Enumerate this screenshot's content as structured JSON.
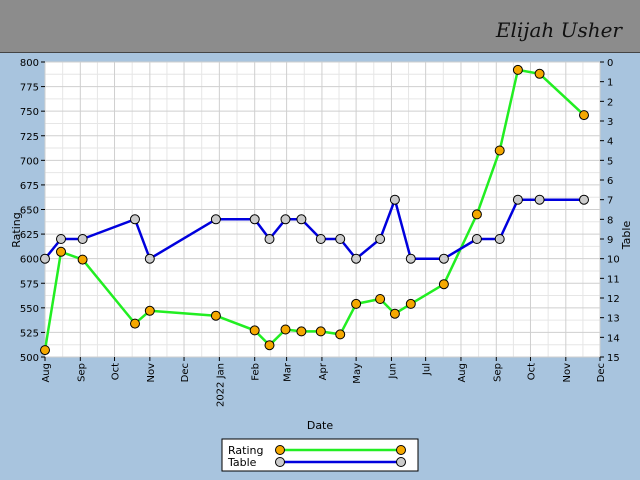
{
  "header": {
    "name": "Elijah Usher"
  },
  "chart_data": {
    "type": "line",
    "xlabel": "Date",
    "ylabel": "Rating",
    "y2label": "Table",
    "ylim": [
      500,
      800
    ],
    "y_ticks": [
      500,
      525,
      550,
      575,
      600,
      625,
      650,
      675,
      700,
      725,
      750,
      775,
      800
    ],
    "y2lim": [
      0,
      15
    ],
    "y2_ticks": [
      0,
      1,
      2,
      3,
      4,
      5,
      6,
      7,
      8,
      9,
      10,
      11,
      12,
      13,
      14,
      15
    ],
    "y2_inverted": true,
    "xlim": [
      "2021-08-01",
      "2022-12-01"
    ],
    "x_ticks": [
      {
        "date": "2021-08-01",
        "label": "Aug"
      },
      {
        "date": "2021-09-01",
        "label": "Sep"
      },
      {
        "date": "2021-10-01",
        "label": "Oct"
      },
      {
        "date": "2021-11-01",
        "label": "Nov"
      },
      {
        "date": "2021-12-01",
        "label": "Dec"
      },
      {
        "date": "2022-01-01",
        "label": "2022 Jan"
      },
      {
        "date": "2022-02-01",
        "label": "Feb"
      },
      {
        "date": "2022-03-01",
        "label": "Mar"
      },
      {
        "date": "2022-04-01",
        "label": "Apr"
      },
      {
        "date": "2022-05-01",
        "label": "May"
      },
      {
        "date": "2022-06-01",
        "label": "Jun"
      },
      {
        "date": "2022-07-01",
        "label": "Jul"
      },
      {
        "date": "2022-08-01",
        "label": "Aug"
      },
      {
        "date": "2022-09-01",
        "label": "Sep"
      },
      {
        "date": "2022-10-01",
        "label": "Oct"
      },
      {
        "date": "2022-11-01",
        "label": "Nov"
      },
      {
        "date": "2022-12-01",
        "label": "Dec"
      }
    ],
    "grid": true,
    "legend_position": "bottom-center",
    "series": [
      {
        "name": "Rating",
        "axis": "left",
        "line_color": "#22ee22",
        "marker_color": "#f5a800",
        "points": [
          [
            "2021-08-01",
            507
          ],
          [
            "2021-08-15",
            607
          ],
          [
            "2021-09-03",
            599
          ],
          [
            "2021-10-19",
            534
          ],
          [
            "2021-11-01",
            547
          ],
          [
            "2021-12-29",
            542
          ],
          [
            "2022-02-01",
            527
          ],
          [
            "2022-02-14",
            512
          ],
          [
            "2022-02-28",
            528
          ],
          [
            "2022-03-14",
            526
          ],
          [
            "2022-03-31",
            526
          ],
          [
            "2022-04-17",
            523
          ],
          [
            "2022-05-01",
            554
          ],
          [
            "2022-05-22",
            559
          ],
          [
            "2022-06-04",
            544
          ],
          [
            "2022-06-18",
            554
          ],
          [
            "2022-07-17",
            574
          ],
          [
            "2022-08-15",
            645
          ],
          [
            "2022-09-04",
            710
          ],
          [
            "2022-09-20",
            792
          ],
          [
            "2022-10-09",
            788
          ],
          [
            "2022-11-17",
            746
          ]
        ]
      },
      {
        "name": "Table",
        "axis": "right",
        "line_color": "#0000dd",
        "marker_color": "#cccccc",
        "points": [
          [
            "2021-08-01",
            10
          ],
          [
            "2021-08-15",
            9
          ],
          [
            "2021-09-03",
            9
          ],
          [
            "2021-10-19",
            8
          ],
          [
            "2021-11-01",
            10
          ],
          [
            "2021-12-29",
            8
          ],
          [
            "2022-02-01",
            8
          ],
          [
            "2022-02-14",
            9
          ],
          [
            "2022-02-28",
            8
          ],
          [
            "2022-03-14",
            8
          ],
          [
            "2022-03-31",
            9
          ],
          [
            "2022-04-17",
            9
          ],
          [
            "2022-05-01",
            10
          ],
          [
            "2022-05-22",
            9
          ],
          [
            "2022-06-04",
            7
          ],
          [
            "2022-06-18",
            10
          ],
          [
            "2022-07-17",
            10
          ],
          [
            "2022-08-15",
            9
          ],
          [
            "2022-09-04",
            9
          ],
          [
            "2022-09-20",
            7
          ],
          [
            "2022-10-09",
            7
          ],
          [
            "2022-11-17",
            7
          ]
        ]
      }
    ]
  }
}
